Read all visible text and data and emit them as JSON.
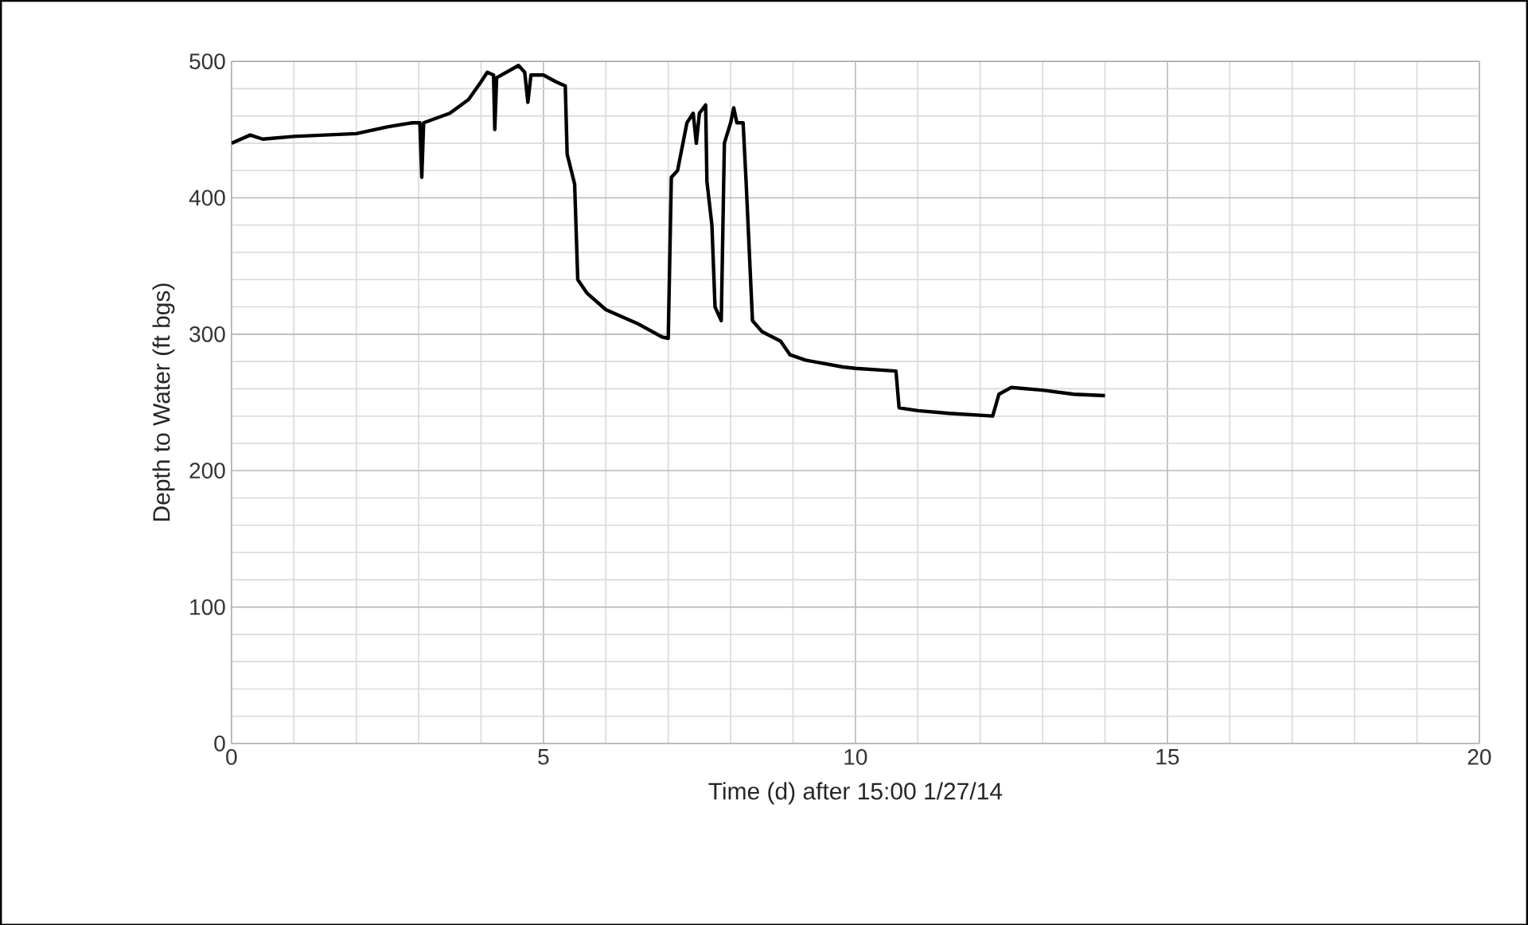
{
  "chart_data": {
    "type": "line",
    "xlabel": "Time (d) after 15:00 1/27/14",
    "ylabel": "Depth  to Water (ft bgs)",
    "xlim": [
      0,
      20
    ],
    "ylim": [
      0,
      500
    ],
    "xticks": [
      0,
      5,
      10,
      15,
      20
    ],
    "yticks": [
      0,
      100,
      200,
      300,
      400,
      500
    ],
    "grid": true,
    "series": [
      {
        "color": "#000000",
        "x": [
          0,
          0.3,
          0.5,
          1,
          1.5,
          2,
          2.5,
          2.9,
          3.02,
          3.05,
          3.08,
          3.5,
          3.8,
          4.0,
          4.1,
          4.2,
          4.22,
          4.25,
          4.6,
          4.7,
          4.75,
          4.8,
          5.0,
          5.2,
          5.35,
          5.38,
          5.5,
          5.55,
          5.7,
          6,
          6.5,
          6.9,
          7.0,
          7.05,
          7.15,
          7.3,
          7.4,
          7.45,
          7.5,
          7.6,
          7.62,
          7.7,
          7.75,
          7.85,
          7.9,
          8.0,
          8.05,
          8.1,
          8.2,
          8.25,
          8.35,
          8.5,
          8.8,
          8.95,
          9.2,
          9.8,
          10.0,
          10.65,
          10.7,
          11,
          11.5,
          12.2,
          12.3,
          12.5,
          13,
          13.5,
          14
        ],
        "values": [
          440,
          446,
          443,
          445,
          446,
          447,
          452,
          455,
          455,
          415,
          455,
          462,
          472,
          485,
          492,
          490,
          450,
          488,
          497,
          492,
          470,
          490,
          490,
          485,
          482,
          432,
          410,
          340,
          330,
          318,
          308,
          298,
          297,
          415,
          420,
          455,
          462,
          440,
          462,
          468,
          412,
          380,
          320,
          310,
          440,
          455,
          466,
          455,
          455,
          410,
          310,
          302,
          295,
          285,
          281,
          276,
          275,
          273,
          246,
          244,
          242,
          240,
          256,
          261,
          259,
          256,
          255
        ]
      }
    ]
  }
}
